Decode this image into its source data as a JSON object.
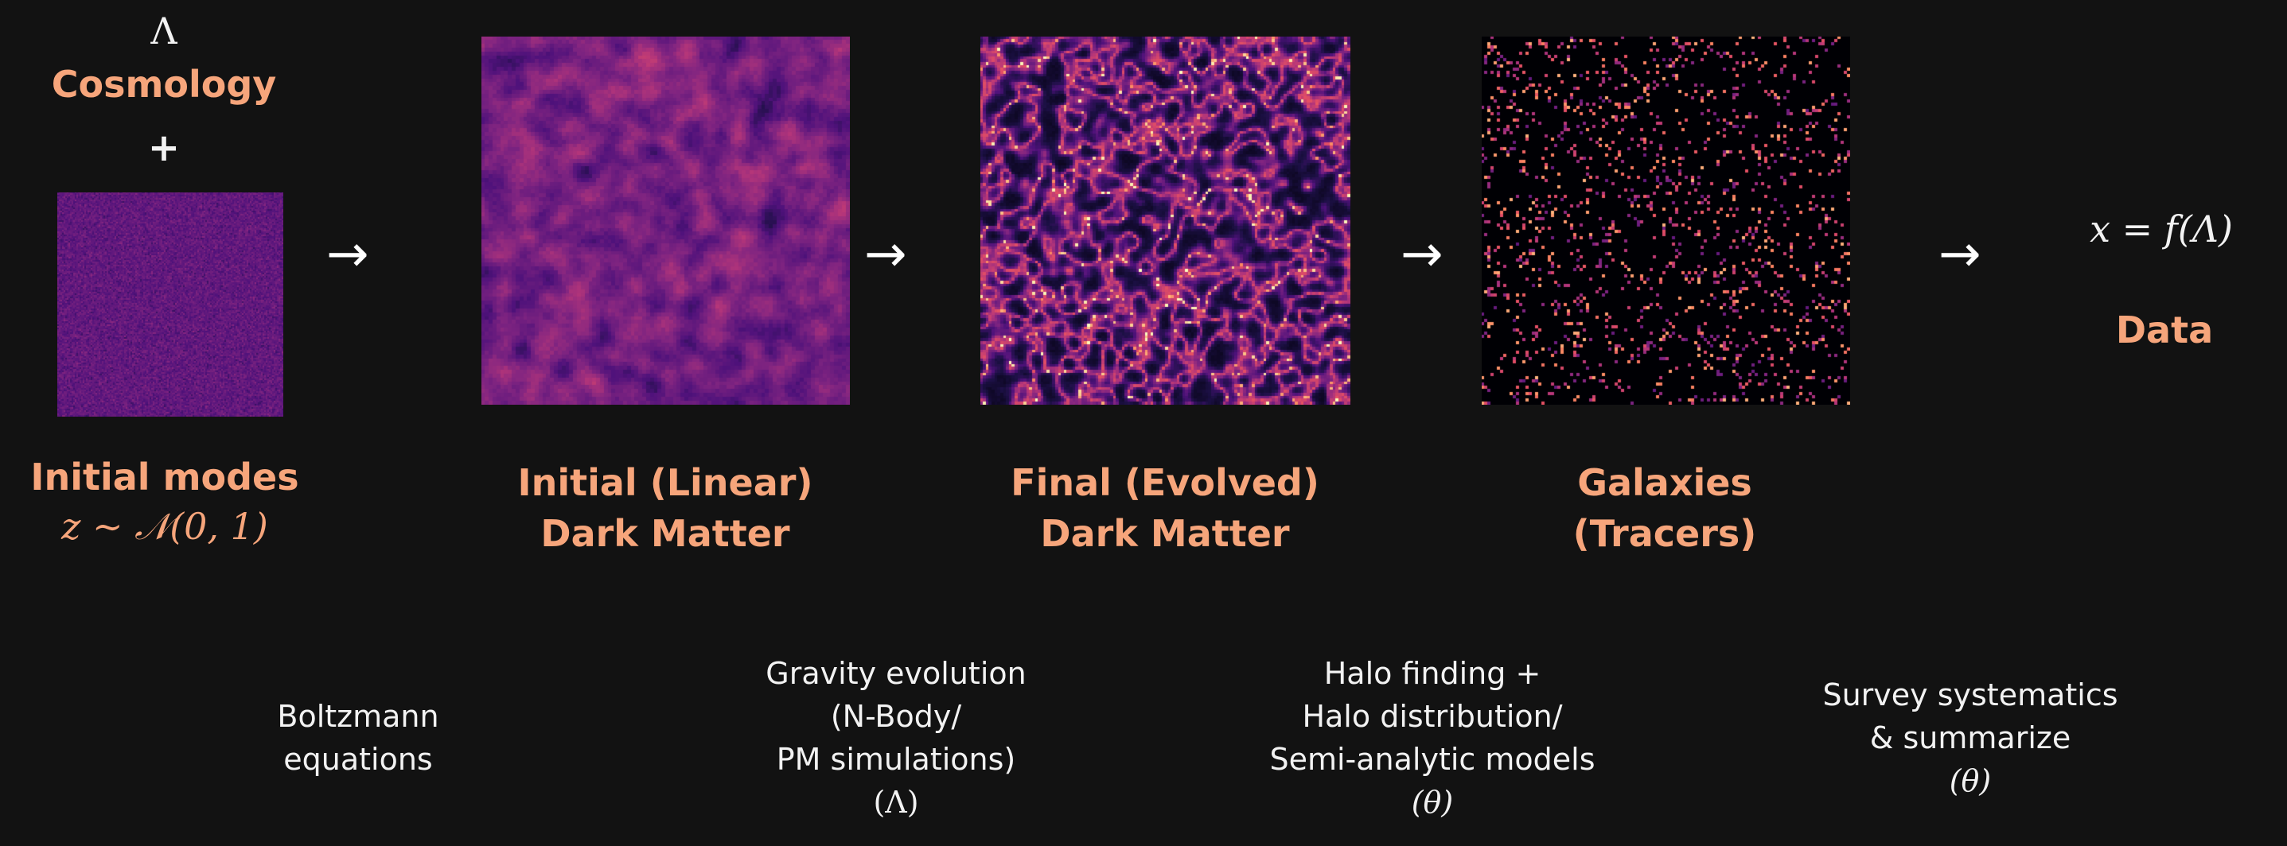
{
  "cosmology": {
    "lambda_symbol": "Λ",
    "label": "Cosmology",
    "plus": "+"
  },
  "stages": [
    {
      "line1": "Initial modes",
      "line2": "z ∼ 𝒩(0, 1)"
    },
    {
      "line1": "Initial (Linear)",
      "line2": "Dark Matter"
    },
    {
      "line1": "Final (Evolved)",
      "line2": "Dark Matter"
    },
    {
      "line1": "Galaxies",
      "line2": "(Tracers)"
    }
  ],
  "output": {
    "equation": "x = f(Λ)",
    "label": "Data"
  },
  "arrow_glyph": "→",
  "processes": [
    {
      "lines": [
        "Boltzmann",
        "equations"
      ]
    },
    {
      "lines": [
        "Gravity evolution",
        "(N-Body/",
        "PM simulations)",
        "(Λ)"
      ]
    },
    {
      "lines": [
        "Halo finding +",
        "Halo distribution/",
        "Semi-analytic models",
        "(θ)"
      ]
    },
    {
      "lines": [
        "Survey systematics",
        "& summarize",
        "(θ)"
      ]
    }
  ],
  "colors": {
    "background": "#121212",
    "accent": "#f6a57b",
    "text": "#f2f2f2"
  }
}
